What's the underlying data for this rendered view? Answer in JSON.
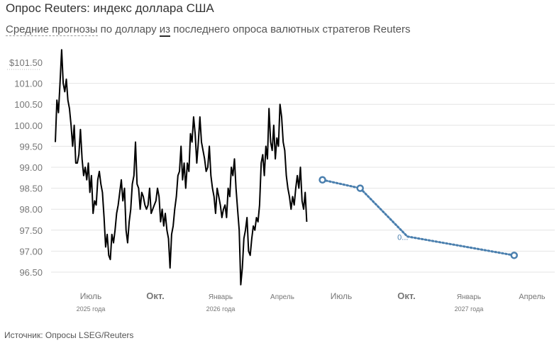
{
  "title": "Опрос Reuters: индекс доллара США",
  "subtitle": {
    "part1": "Средние прогнозы",
    "part2": " по доллару ",
    "part3": "из",
    "part4": " последнего опроса валютных стратегов Reuters"
  },
  "source": "Источник: Опросы LSEG/Reuters",
  "chart_data": {
    "type": "line",
    "y_ticks": [
      "$101.50",
      "101.00",
      "100.50",
      "100.00",
      "99.50",
      "99.00",
      "98.50",
      "98.00",
      "97.50",
      "97.00",
      "96.50"
    ],
    "y_values": [
      101.5,
      101.0,
      100.5,
      100.0,
      99.5,
      99.0,
      98.5,
      98.0,
      97.5,
      97.0,
      96.5
    ],
    "ylim": [
      96.5,
      101.5
    ],
    "x_ticks": [
      {
        "label": "Июль",
        "year": "2025 года"
      },
      {
        "label": "Окт.",
        "year": ""
      },
      {
        "label": "Январь",
        "year": "2026 года"
      },
      {
        "label": "Апрель",
        "year": ""
      },
      {
        "label": "Июль",
        "year": ""
      },
      {
        "label": "Окт.",
        "year": ""
      },
      {
        "label": "Январь",
        "year": "2027 года"
      },
      {
        "label": "Апрель",
        "year": ""
      }
    ],
    "grid": true,
    "series": [
      {
        "style": "solid",
        "color": "#000000",
        "points": [
          [
            0,
            99.6
          ],
          [
            0.5,
            100.6
          ],
          [
            1,
            100.3
          ],
          [
            1.5,
            101.0
          ],
          [
            2,
            101.8
          ],
          [
            2.5,
            101.0
          ],
          [
            3,
            100.8
          ],
          [
            3.5,
            101.1
          ],
          [
            4,
            100.6
          ],
          [
            4.5,
            100.4
          ],
          [
            5,
            100.0
          ],
          [
            5.5,
            99.5
          ],
          [
            6,
            100.0
          ],
          [
            6.5,
            99.1
          ],
          [
            7,
            99.1
          ],
          [
            7.5,
            99.3
          ],
          [
            8,
            99.9
          ],
          [
            8.5,
            99.2
          ],
          [
            9,
            98.8
          ],
          [
            9.5,
            99.0
          ],
          [
            10,
            98.7
          ],
          [
            10.5,
            99.1
          ],
          [
            11,
            98.4
          ],
          [
            11.5,
            98.8
          ],
          [
            12,
            97.9
          ],
          [
            12.5,
            98.2
          ],
          [
            13,
            98.1
          ],
          [
            13.5,
            98.7
          ],
          [
            14,
            98.9
          ],
          [
            14.5,
            98.6
          ],
          [
            15,
            98.4
          ],
          [
            15.5,
            97.8
          ],
          [
            16,
            97.1
          ],
          [
            16.5,
            97.4
          ],
          [
            17,
            96.9
          ],
          [
            17.5,
            96.8
          ],
          [
            18,
            97.4
          ],
          [
            18.5,
            97.2
          ],
          [
            19,
            97.5
          ],
          [
            19.5,
            97.9
          ],
          [
            20,
            98.1
          ],
          [
            20.5,
            98.4
          ],
          [
            21,
            98.7
          ],
          [
            21.5,
            98.2
          ],
          [
            22,
            98.5
          ],
          [
            22.5,
            97.5
          ],
          [
            23,
            97.2
          ],
          [
            23.5,
            97.7
          ],
          [
            24,
            98.0
          ],
          [
            24.5,
            98.6
          ],
          [
            25,
            98.8
          ],
          [
            25.5,
            99.6
          ],
          [
            26,
            98.6
          ],
          [
            26.5,
            98.5
          ],
          [
            27,
            98.0
          ],
          [
            27.5,
            98.4
          ],
          [
            28,
            98.3
          ],
          [
            28.5,
            98.1
          ],
          [
            29,
            98.0
          ],
          [
            29.5,
            98.1
          ],
          [
            30,
            98.5
          ],
          [
            30.5,
            97.9
          ],
          [
            31,
            98.0
          ],
          [
            31.5,
            98.1
          ],
          [
            32,
            98.2
          ],
          [
            32.5,
            98.5
          ],
          [
            33,
            98.3
          ],
          [
            33.5,
            97.7
          ],
          [
            34,
            98.0
          ],
          [
            34.5,
            97.6
          ],
          [
            35,
            97.9
          ],
          [
            35.5,
            97.5
          ],
          [
            36,
            97.3
          ],
          [
            36.5,
            96.6
          ],
          [
            37,
            97.4
          ],
          [
            37.5,
            97.6
          ],
          [
            38,
            98.0
          ],
          [
            38.5,
            98.3
          ],
          [
            39,
            98.8
          ],
          [
            39.5,
            98.9
          ],
          [
            40,
            99.5
          ],
          [
            40.5,
            98.7
          ],
          [
            41,
            99.1
          ],
          [
            41.5,
            98.5
          ],
          [
            42,
            99.1
          ],
          [
            42.5,
            98.9
          ],
          [
            43,
            99.8
          ],
          [
            43.5,
            99.6
          ],
          [
            44,
            100.2
          ],
          [
            44.5,
            99.8
          ],
          [
            45,
            99.1
          ],
          [
            45.5,
            99.6
          ],
          [
            46,
            100.2
          ],
          [
            46.5,
            99.6
          ],
          [
            47,
            99.4
          ],
          [
            47.5,
            99.2
          ],
          [
            48,
            98.9
          ],
          [
            48.5,
            99.0
          ],
          [
            49,
            99.5
          ],
          [
            49.5,
            98.8
          ],
          [
            50,
            98.5
          ],
          [
            50.5,
            98.3
          ],
          [
            51,
            97.9
          ],
          [
            51.5,
            98.5
          ],
          [
            52,
            98.3
          ],
          [
            52.5,
            98.1
          ],
          [
            53,
            97.8
          ],
          [
            53.5,
            98.0
          ],
          [
            54,
            98.1
          ],
          [
            54.5,
            97.8
          ],
          [
            55,
            98.5
          ],
          [
            55.5,
            98.3
          ],
          [
            56,
            99.0
          ],
          [
            56.5,
            98.8
          ],
          [
            57,
            99.2
          ],
          [
            57.5,
            98.5
          ],
          [
            58,
            98.0
          ],
          [
            58.5,
            97.5
          ],
          [
            59,
            96.2
          ],
          [
            59.5,
            96.6
          ],
          [
            60,
            97.3
          ],
          [
            60.5,
            97.5
          ],
          [
            61,
            97.8
          ],
          [
            61.5,
            97.0
          ],
          [
            62,
            96.9
          ],
          [
            62.5,
            97.3
          ],
          [
            63,
            97.6
          ],
          [
            63.5,
            97.5
          ],
          [
            64,
            97.8
          ],
          [
            64.5,
            97.7
          ],
          [
            65,
            98.1
          ],
          [
            65.5,
            99.1
          ],
          [
            66,
            99.3
          ],
          [
            66.5,
            98.8
          ],
          [
            67,
            99.5
          ],
          [
            67.5,
            99.2
          ],
          [
            68,
            100.4
          ],
          [
            68.5,
            99.6
          ],
          [
            69,
            99.4
          ],
          [
            69.5,
            100.0
          ],
          [
            70,
            99.2
          ],
          [
            70.5,
            99.7
          ],
          [
            71,
            99.5
          ],
          [
            71.5,
            100.5
          ],
          [
            72,
            100.2
          ],
          [
            72.5,
            99.6
          ],
          [
            73,
            99.4
          ],
          [
            73.5,
            98.8
          ],
          [
            74,
            98.5
          ],
          [
            74.5,
            98.3
          ],
          [
            75,
            98.0
          ],
          [
            75.5,
            98.3
          ],
          [
            76,
            98.1
          ],
          [
            76.5,
            98.5
          ],
          [
            77,
            98.8
          ],
          [
            77.5,
            98.5
          ],
          [
            78,
            99.0
          ],
          [
            78.5,
            98.2
          ],
          [
            79,
            98.0
          ],
          [
            79.5,
            98.4
          ],
          [
            80,
            97.7
          ]
        ]
      },
      {
        "style": "dotted",
        "color": "#4a7fae",
        "points": [
          [
            85,
            98.7
          ],
          [
            97,
            98.5
          ],
          [
            112,
            97.35
          ],
          [
            146,
            96.9
          ]
        ],
        "markers": [
          true,
          true,
          false,
          true
        ],
        "labels": [
          "",
          "",
          "0...",
          ""
        ]
      }
    ]
  }
}
